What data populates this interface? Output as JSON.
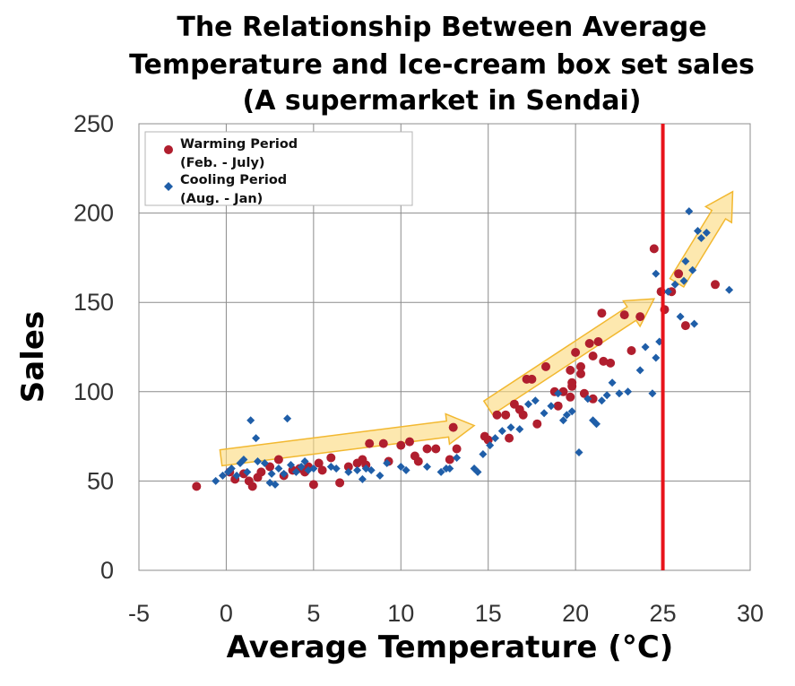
{
  "chart_data": {
    "type": "scatter",
    "title": [
      "The Relationship Between Average",
      "Temperature and Ice-cream box set sales",
      "(A supermarket in Sendai)"
    ],
    "xlabel": "Average Temperature (°C)",
    "ylabel": "Sales",
    "xlim": [
      -5,
      30
    ],
    "ylim": [
      0,
      250
    ],
    "xticks": [
      "-5",
      "0",
      "5",
      "10",
      "15",
      "20",
      "25",
      "30"
    ],
    "yticks": [
      "0",
      "50",
      "100",
      "150",
      "200",
      "250"
    ],
    "grid": true,
    "legend_position": "top-left",
    "reference_line": {
      "x": 25,
      "color": "#e8141b"
    },
    "trend_arrows": [
      {
        "from": [
          -0.3,
          63
        ],
        "to": [
          14.2,
          81
        ]
      },
      {
        "from": [
          15,
          91
        ],
        "to": [
          24.5,
          152
        ]
      },
      {
        "from": [
          25.8,
          161
        ],
        "to": [
          29,
          212
        ]
      }
    ],
    "series": [
      {
        "name": "Warming Period (Feb. - July)",
        "legend_lines": [
          "Warming Period",
          "(Feb. - July)"
        ],
        "marker": "circle",
        "color": "#b01e2e",
        "points": [
          [
            -1.7,
            47
          ],
          [
            0.2,
            55
          ],
          [
            0.5,
            51
          ],
          [
            1,
            54
          ],
          [
            1.3,
            50
          ],
          [
            1.5,
            47
          ],
          [
            1.8,
            52
          ],
          [
            2,
            55
          ],
          [
            2.5,
            58
          ],
          [
            3,
            62
          ],
          [
            3.3,
            53
          ],
          [
            3.8,
            56
          ],
          [
            4.2,
            57
          ],
          [
            4.5,
            55
          ],
          [
            4.7,
            58
          ],
          [
            5,
            48
          ],
          [
            5.3,
            60
          ],
          [
            5.5,
            56
          ],
          [
            6,
            63
          ],
          [
            6.5,
            49
          ],
          [
            7,
            58
          ],
          [
            7.5,
            60
          ],
          [
            7.8,
            62
          ],
          [
            8,
            59
          ],
          [
            8.2,
            71
          ],
          [
            9,
            71
          ],
          [
            9.3,
            61
          ],
          [
            10,
            70
          ],
          [
            10.5,
            72
          ],
          [
            10.8,
            64
          ],
          [
            11,
            61
          ],
          [
            11.5,
            68
          ],
          [
            12,
            68
          ],
          [
            12.8,
            62
          ],
          [
            13,
            80
          ],
          [
            13.2,
            68
          ],
          [
            14.8,
            75
          ],
          [
            15,
            73
          ],
          [
            15.5,
            87
          ],
          [
            16,
            87
          ],
          [
            16.2,
            74
          ],
          [
            16.5,
            93
          ],
          [
            16.8,
            90
          ],
          [
            17,
            87
          ],
          [
            17.2,
            107
          ],
          [
            17.5,
            107
          ],
          [
            17.8,
            82
          ],
          [
            18.3,
            114
          ],
          [
            18.8,
            100
          ],
          [
            19,
            92
          ],
          [
            19.3,
            100
          ],
          [
            19.7,
            112
          ],
          [
            19.7,
            97
          ],
          [
            19.8,
            103
          ],
          [
            19.8,
            105
          ],
          [
            20,
            122
          ],
          [
            20.3,
            114
          ],
          [
            20.3,
            110
          ],
          [
            20.5,
            99
          ],
          [
            20.8,
            127
          ],
          [
            21,
            120
          ],
          [
            21,
            96
          ],
          [
            21.3,
            128
          ],
          [
            21.5,
            144
          ],
          [
            21.6,
            117
          ],
          [
            22,
            116
          ],
          [
            22.8,
            143
          ],
          [
            23.2,
            123
          ],
          [
            23.7,
            142
          ],
          [
            24.5,
            180
          ],
          [
            24.9,
            156
          ],
          [
            25.1,
            146
          ],
          [
            25.5,
            156
          ],
          [
            25.9,
            166
          ],
          [
            26.3,
            137
          ],
          [
            28,
            160
          ]
        ]
      },
      {
        "name": "Cooling Period (Aug. - Jan)",
        "legend_lines": [
          "Cooling Period",
          "(Aug. - Jan)"
        ],
        "marker": "diamond",
        "color": "#1f5ea8",
        "points": [
          [
            -0.6,
            50
          ],
          [
            -0.2,
            53
          ],
          [
            0.1,
            55
          ],
          [
            0.3,
            57
          ],
          [
            0.6,
            53
          ],
          [
            0.8,
            60
          ],
          [
            1,
            62
          ],
          [
            1.2,
            55
          ],
          [
            1.4,
            84
          ],
          [
            1.7,
            74
          ],
          [
            1.8,
            61
          ],
          [
            2.2,
            60
          ],
          [
            2.5,
            49
          ],
          [
            2.6,
            54
          ],
          [
            2.8,
            48
          ],
          [
            3,
            57
          ],
          [
            3.3,
            54
          ],
          [
            3.5,
            85
          ],
          [
            3.7,
            59
          ],
          [
            4,
            55
          ],
          [
            4.3,
            58
          ],
          [
            4.5,
            61
          ],
          [
            4.7,
            56
          ],
          [
            5,
            57
          ],
          [
            6,
            58
          ],
          [
            6.3,
            57
          ],
          [
            7,
            55
          ],
          [
            7.5,
            56
          ],
          [
            7.8,
            51
          ],
          [
            8,
            57
          ],
          [
            8.3,
            56
          ],
          [
            8.8,
            53
          ],
          [
            9.2,
            60
          ],
          [
            10,
            58
          ],
          [
            10.3,
            56
          ],
          [
            11.5,
            58
          ],
          [
            12.3,
            55
          ],
          [
            12.6,
            57
          ],
          [
            12.8,
            57
          ],
          [
            13.2,
            63
          ],
          [
            14.2,
            57
          ],
          [
            14.4,
            55
          ],
          [
            14.7,
            65
          ],
          [
            15.1,
            70
          ],
          [
            15.4,
            74
          ],
          [
            15.8,
            78
          ],
          [
            16.3,
            80
          ],
          [
            16.8,
            79
          ],
          [
            17.3,
            93
          ],
          [
            17.7,
            95
          ],
          [
            18.2,
            88
          ],
          [
            18.6,
            92
          ],
          [
            19,
            99
          ],
          [
            19.3,
            84
          ],
          [
            19.5,
            87
          ],
          [
            19.8,
            89
          ],
          [
            20.2,
            66
          ],
          [
            20.7,
            96
          ],
          [
            21,
            84
          ],
          [
            21.2,
            82
          ],
          [
            21.5,
            95
          ],
          [
            21.8,
            98
          ],
          [
            22.1,
            105
          ],
          [
            22.5,
            99
          ],
          [
            23,
            100
          ],
          [
            23.7,
            112
          ],
          [
            24,
            125
          ],
          [
            24.4,
            99
          ],
          [
            24.6,
            119
          ],
          [
            24.8,
            128
          ],
          [
            24.6,
            166
          ],
          [
            25.3,
            156
          ],
          [
            25.7,
            160
          ],
          [
            26,
            142
          ],
          [
            26.2,
            162
          ],
          [
            26.3,
            173
          ],
          [
            26.5,
            201
          ],
          [
            26.7,
            168
          ],
          [
            26.8,
            138
          ],
          [
            27,
            190
          ],
          [
            27.2,
            186
          ],
          [
            27.5,
            189
          ],
          [
            28.8,
            157
          ]
        ]
      }
    ]
  }
}
